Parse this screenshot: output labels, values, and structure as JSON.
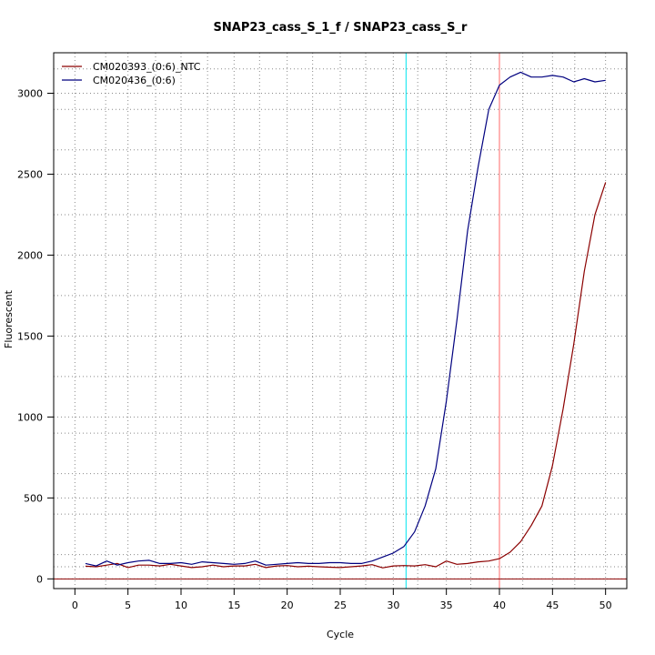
{
  "chart_data": {
    "type": "line",
    "title": "SNAP23_cass_S_1_f / SNAP23_cass_S_r",
    "xlabel": "Cycle",
    "ylabel": "Fluorescent",
    "xlim": [
      -2,
      52
    ],
    "ylim": [
      -60,
      3250
    ],
    "xticks": [
      0,
      5,
      10,
      15,
      20,
      25,
      30,
      35,
      40,
      45,
      50
    ],
    "yticks": [
      0,
      500,
      1000,
      1500,
      2000,
      2500,
      3000
    ],
    "x_minor_gridlines": [
      2.9,
      7.6,
      12.5,
      17.4,
      22.4,
      27.4,
      32.3,
      37.3,
      42.2,
      47.1
    ],
    "y_gridlines": [
      75,
      150,
      400,
      650,
      900,
      1250,
      1750,
      2250,
      2650,
      2900,
      3150
    ],
    "grid": true,
    "legend_position": "top-left",
    "colors": {
      "ntc": "#8b0000",
      "sample": "#00007f",
      "threshold_cycle": "#00e5ee",
      "end_cycle": "#ff6a6a",
      "baseline": "#8b0000"
    },
    "vertical_markers": [
      31.2,
      40
    ],
    "horizontal_markers": [
      0
    ],
    "x": [
      1,
      2,
      3,
      4,
      5,
      6,
      7,
      8,
      9,
      10,
      11,
      12,
      13,
      14,
      15,
      16,
      17,
      18,
      19,
      20,
      21,
      22,
      23,
      24,
      25,
      26,
      27,
      28,
      29,
      30,
      31,
      32,
      33,
      34,
      35,
      36,
      37,
      38,
      39,
      40,
      41,
      42,
      43,
      44,
      45,
      46,
      47,
      48,
      49,
      50
    ],
    "series": [
      {
        "name": "CM020393_(0:6)_NTC",
        "color": "#8b0000",
        "values": [
          78,
          75,
          85,
          95,
          70,
          85,
          85,
          80,
          90,
          80,
          70,
          75,
          85,
          75,
          80,
          80,
          90,
          70,
          80,
          82,
          75,
          78,
          75,
          72,
          70,
          75,
          80,
          88,
          68,
          80,
          82,
          80,
          88,
          75,
          110,
          90,
          95,
          105,
          110,
          125,
          165,
          230,
          330,
          450,
          700,
          1050,
          1450,
          1900,
          2250,
          2450
        ]
      },
      {
        "name": "CM020436_(0:6)",
        "color": "#00007f",
        "values": [
          95,
          80,
          110,
          85,
          100,
          110,
          115,
          95,
          95,
          100,
          90,
          105,
          100,
          95,
          90,
          95,
          110,
          85,
          90,
          95,
          100,
          95,
          95,
          100,
          100,
          95,
          95,
          110,
          135,
          160,
          200,
          290,
          450,
          680,
          1100,
          1600,
          2150,
          2550,
          2900,
          3050,
          3100,
          3130,
          3100,
          3100,
          3110,
          3100,
          3070,
          3090,
          3070,
          3080
        ]
      }
    ]
  }
}
